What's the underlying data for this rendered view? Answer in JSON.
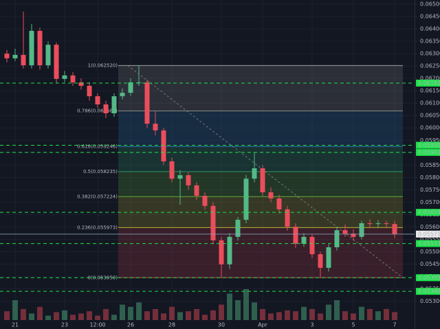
{
  "chart_data": {
    "type": "candlestick",
    "x": [
      null,
      "21",
      null,
      null,
      null,
      null,
      null,
      "23",
      null,
      null,
      null,
      "12:00",
      null,
      null,
      null,
      "26",
      null,
      null,
      null,
      null,
      "28",
      null,
      null,
      null,
      null,
      null,
      "30",
      null,
      null,
      null,
      null,
      "Apr",
      null,
      null,
      null,
      null,
      null,
      "3",
      null,
      null,
      null,
      null,
      "5",
      null,
      null,
      null,
      null,
      "7"
    ],
    "open": [
      0.063,
      0.06281,
      0.06295,
      0.06253,
      0.06392,
      0.06253,
      0.06336,
      0.06198,
      0.06212,
      0.06184,
      0.0617,
      0.06128,
      0.06095,
      0.06059,
      0.06128,
      0.06142,
      0.06184,
      0.06184,
      0.06017,
      0.0599,
      0.05865,
      0.05795,
      0.05809,
      0.05768,
      0.05726,
      0.05685,
      0.05546,
      0.05449,
      0.0556,
      0.05629,
      0.05795,
      0.05837,
      0.0574,
      0.05715,
      0.05671,
      0.05601,
      0.05532,
      0.0556,
      0.0549,
      0.05435,
      0.05518,
      0.05587,
      0.05573,
      0.0556,
      0.05615,
      0.05612,
      0.05615,
      0.05612
    ],
    "high": [
      0.06315,
      0.0632,
      0.0647,
      0.0642,
      0.06405,
      0.0635,
      0.06345,
      0.0623,
      0.06225,
      0.062,
      0.06185,
      0.0614,
      0.0611,
      0.0614,
      0.0616,
      0.062,
      0.06252,
      0.06195,
      0.0607,
      0.06,
      0.0588,
      0.0583,
      0.0582,
      0.0578,
      0.0574,
      0.057,
      0.0556,
      0.05575,
      0.0564,
      0.0581,
      0.05901,
      0.0585,
      0.0576,
      0.0573,
      0.05685,
      0.05615,
      0.05575,
      0.0557,
      0.055,
      0.0553,
      0.056,
      0.0561,
      0.0559,
      0.05625,
      0.0563,
      0.05628,
      0.05625,
      0.05625
    ],
    "low": [
      0.06265,
      0.0627,
      0.0624,
      0.0624,
      0.06235,
      0.0624,
      0.0618,
      0.06185,
      0.0617,
      0.06155,
      0.0611,
      0.0608,
      0.0604,
      0.06045,
      0.06115,
      0.0613,
      0.0617,
      0.06,
      0.0597,
      0.0585,
      0.0578,
      0.0569,
      0.0575,
      0.0571,
      0.0567,
      0.0553,
      0.05395,
      0.0543,
      0.05545,
      0.05615,
      0.0578,
      0.05725,
      0.057,
      0.05655,
      0.05585,
      0.05515,
      0.0552,
      0.05475,
      0.05395,
      0.0542,
      0.05505,
      0.0556,
      0.05545,
      0.0555,
      0.05595,
      0.05598,
      0.05595,
      0.05555
    ],
    "close": [
      0.06281,
      0.06295,
      0.06253,
      0.06392,
      0.06253,
      0.06336,
      0.06198,
      0.06212,
      0.06184,
      0.0617,
      0.06128,
      0.06095,
      0.06059,
      0.06128,
      0.06142,
      0.06184,
      0.06184,
      0.06017,
      0.0599,
      0.05865,
      0.05795,
      0.05809,
      0.05768,
      0.05726,
      0.05685,
      0.05546,
      0.05449,
      0.0556,
      0.05629,
      0.05795,
      0.05837,
      0.0574,
      0.05715,
      0.05671,
      0.05601,
      0.05532,
      0.0556,
      0.0549,
      0.05435,
      0.05518,
      0.05587,
      0.05573,
      0.0556,
      0.05615,
      0.05612,
      0.05615,
      0.05612,
      0.05571
    ],
    "volume": [
      20,
      45,
      25,
      15,
      30,
      10,
      18,
      22,
      12,
      15,
      20,
      10,
      25,
      12,
      35,
      30,
      40,
      20,
      25,
      15,
      30,
      18,
      20,
      25,
      12,
      22,
      35,
      60,
      45,
      70,
      40,
      25,
      15,
      18,
      22,
      20,
      30,
      25,
      15,
      35,
      45,
      20,
      15,
      30,
      25,
      20,
      25,
      18
    ],
    "up_color": "#53b987",
    "down_color": "#eb4d5c",
    "ylim": [
      0.0526,
      0.065
    ],
    "yticks": [
      {
        "value": 0.053,
        "label": "0.053000"
      },
      {
        "value": 0.0535,
        "label": "0.053500"
      },
      {
        "value": 0.054,
        "label": "0.054000"
      },
      {
        "value": 0.0545,
        "label": "0.054500"
      },
      {
        "value": 0.055,
        "label": "0.055000"
      },
      {
        "value": 0.0555,
        "label": "0.055500"
      },
      {
        "value": 0.056,
        "label": "0.056000"
      },
      {
        "value": 0.0565,
        "label": "0.056500"
      },
      {
        "value": 0.057,
        "label": "0.057000"
      },
      {
        "value": 0.0575,
        "label": "0.057500"
      },
      {
        "value": 0.058,
        "label": "0.058000"
      },
      {
        "value": 0.0585,
        "label": "0.058500"
      },
      {
        "value": 0.059,
        "label": "0.059000"
      },
      {
        "value": 0.0595,
        "label": "0.059500"
      },
      {
        "value": 0.06,
        "label": "0.060000"
      },
      {
        "value": 0.0605,
        "label": "0.060500"
      },
      {
        "value": 0.061,
        "label": "0.061000"
      },
      {
        "value": 0.0615,
        "label": "0.061500"
      },
      {
        "value": 0.062,
        "label": "0.062000"
      },
      {
        "value": 0.0625,
        "label": "0.062500"
      },
      {
        "value": 0.063,
        "label": "0.063000"
      },
      {
        "value": 0.0635,
        "label": "0.063500"
      },
      {
        "value": 0.064,
        "label": "0.064000"
      },
      {
        "value": 0.0645,
        "label": "0.064500"
      },
      {
        "value": 0.065,
        "label": "0.065000"
      }
    ],
    "grid": true,
    "fib_levels": [
      {
        "value": 0.05395,
        "label": "0(0.053950)",
        "color": "#c0404a"
      },
      {
        "value": 0.055973,
        "label": "0.236(0.055973)",
        "color": "#b8b030"
      },
      {
        "value": 0.057224,
        "label": "0.382(0.057224)",
        "color": "#5fae3a"
      },
      {
        "value": 0.058235,
        "label": "0.5(0.058235)",
        "color": "#2f9a6a"
      },
      {
        "value": 0.059246,
        "label": "0.618(0.059246)",
        "color": "#2a78b0"
      },
      {
        "value": 0.060686,
        "label": "0.786(0.060686)",
        "color": "#8a8a8a"
      },
      {
        "value": 0.06252,
        "label": "1(0.062520)",
        "color": "#9a9a9a"
      }
    ],
    "levels": [
      {
        "value": 0.06181,
        "label": "0.061810"
      },
      {
        "value": 0.0593,
        "label": "0.059300"
      },
      {
        "value": 0.05901,
        "label": "0.059010"
      },
      {
        "value": 0.05659,
        "label": "0.056590"
      },
      {
        "value": 0.05533,
        "label": "0.055330"
      },
      {
        "value": 0.05395,
        "label": "0.053950"
      },
      {
        "value": 0.0534,
        "label": "0.053400"
      }
    ],
    "level_color": "#1ee34a",
    "last_price": {
      "value": 0.055712,
      "label": "0.055712"
    }
  }
}
